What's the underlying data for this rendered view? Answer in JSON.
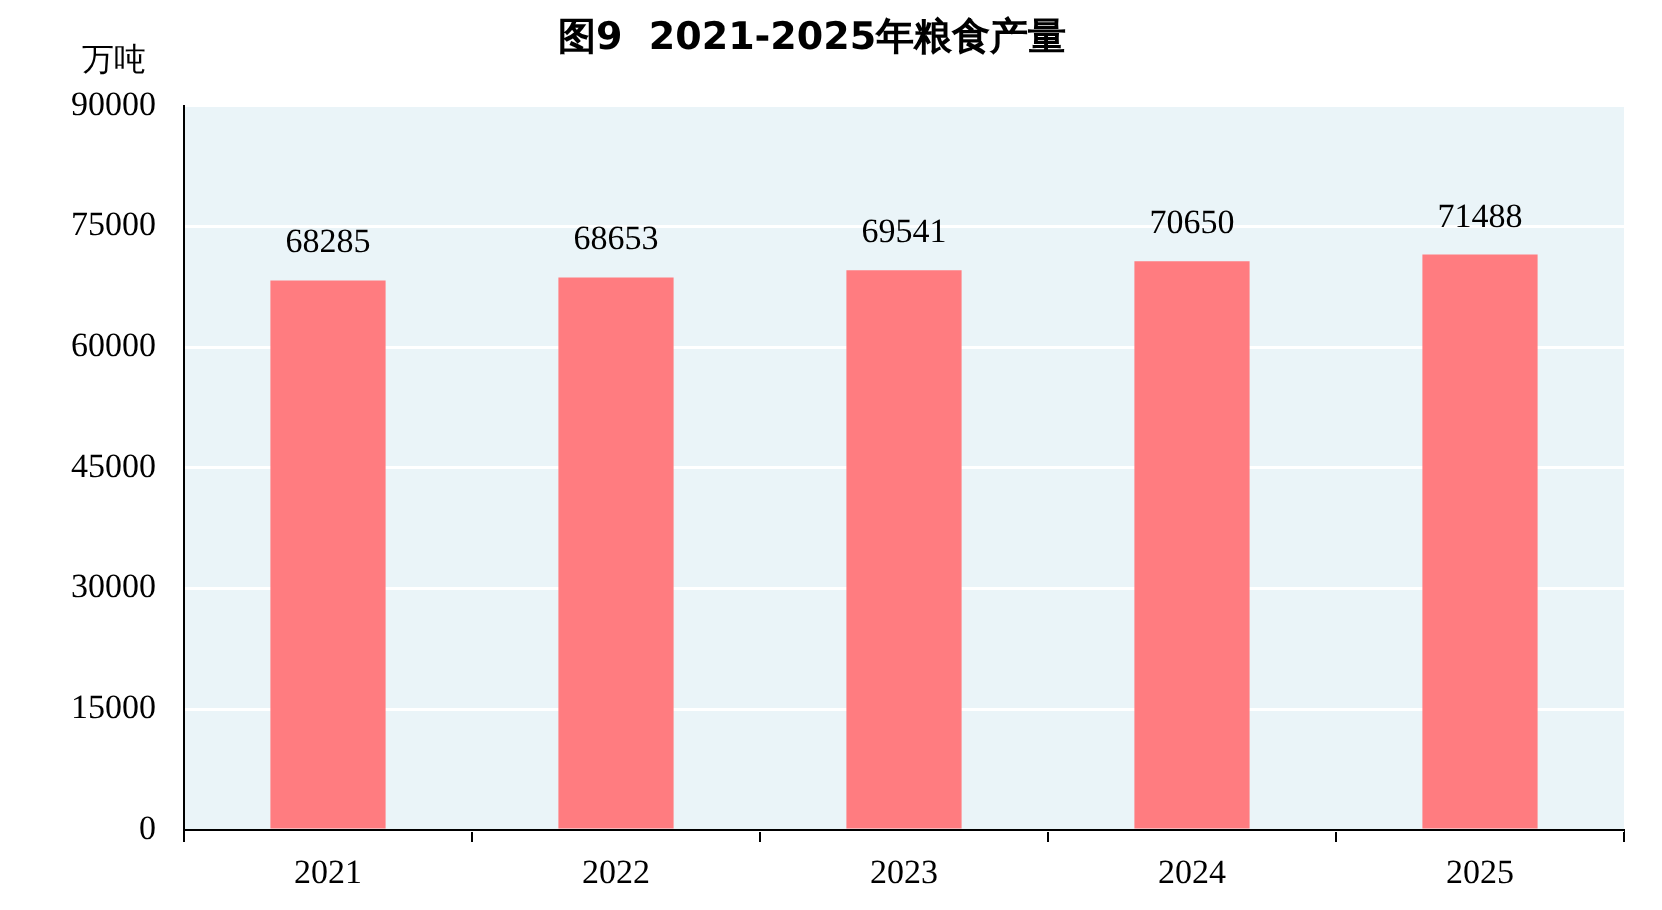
{
  "chart_data": {
    "type": "bar",
    "title": "图9  2021-2025年粮食产量",
    "ylabel": "万吨",
    "categories": [
      "2021",
      "2022",
      "2023",
      "2024",
      "2025"
    ],
    "values": [
      68285,
      68653,
      69541,
      70650,
      71488
    ],
    "color": "#ff7c80",
    "ylim": [
      0,
      90000
    ],
    "yticks": [
      0,
      15000,
      30000,
      45000,
      60000,
      75000,
      90000
    ],
    "grid": "y",
    "data_labels": true,
    "legend": false
  }
}
